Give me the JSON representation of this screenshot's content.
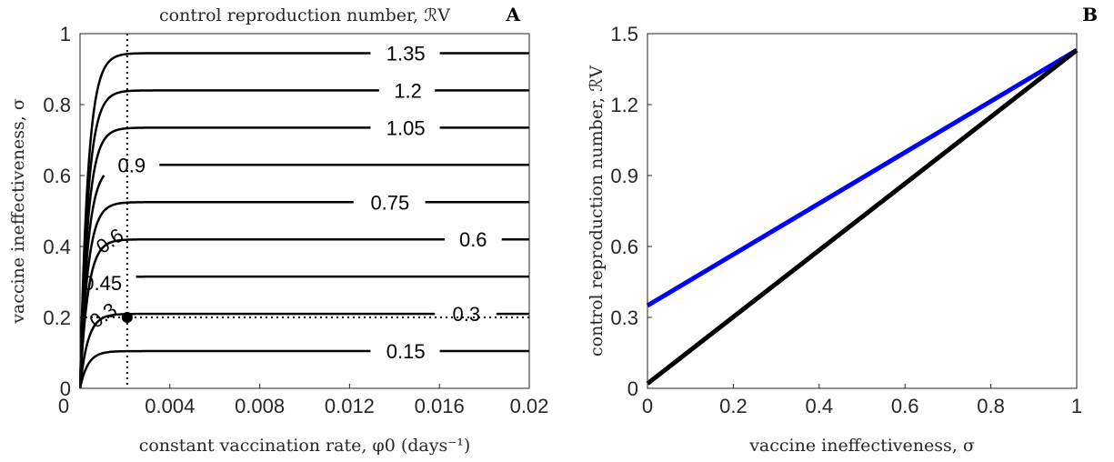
{
  "chart_data": [
    {
      "panel": "A",
      "type": "contour",
      "title": "control reproduction number, ℛV",
      "xlabel": "constant vaccination rate, φ0 (days⁻¹)",
      "ylabel": "vaccine ineffectiveness, σ",
      "xlim": [
        0,
        0.02
      ],
      "ylim": [
        0,
        1
      ],
      "xticks": [
        0,
        0.004,
        0.008,
        0.012,
        0.016,
        0.02
      ],
      "xtick_labels": [
        "0",
        "0.004",
        "0.008",
        "0.012",
        "0.016",
        "0.02"
      ],
      "yticks": [
        0,
        0.2,
        0.4,
        0.6,
        0.8,
        1
      ],
      "ytick_labels": [
        "0",
        "0.2",
        "0.4",
        "0.6",
        "0.8",
        "1"
      ],
      "contours": [
        {
          "level": 0.15,
          "label": "0.15",
          "asymptote_sigma": 0.105,
          "label_x": 0.0145
        },
        {
          "level": 0.3,
          "label": "0.3",
          "asymptote_sigma": 0.21,
          "label_x": 0.0172
        },
        {
          "level": 0.45,
          "label": "0.45",
          "asymptote_sigma": 0.315,
          "label_x": 0.001
        },
        {
          "level": 0.6,
          "label": "0.6",
          "asymptote_sigma": 0.42,
          "label_x": 0.0175
        },
        {
          "level": 0.75,
          "label": "0.75",
          "asymptote_sigma": 0.525,
          "label_x": 0.0138
        },
        {
          "level": 0.9,
          "label": "0.9",
          "asymptote_sigma": 0.63,
          "label_x": 0.0023
        },
        {
          "level": 1.05,
          "label": "1.05",
          "asymptote_sigma": 0.735,
          "label_x": 0.0145
        },
        {
          "level": 1.2,
          "label": "1.2",
          "asymptote_sigma": 0.84,
          "label_x": 0.0146
        },
        {
          "level": 1.35,
          "label": "1.35",
          "asymptote_sigma": 0.945,
          "label_x": 0.0145
        }
      ],
      "extra_labels": [
        {
          "text": "0.6",
          "phi": 0.0015,
          "sigma": 0.4
        },
        {
          "text": "0.3",
          "phi": 0.0012,
          "sigma": 0.19
        }
      ],
      "reference_lines": {
        "phi0": 0.0021,
        "sigma": 0.2
      },
      "marked_point": {
        "phi0": 0.0021,
        "sigma": 0.2
      },
      "panel_label": "A"
    },
    {
      "panel": "B",
      "type": "line",
      "xlabel": "vaccine ineffectiveness, σ",
      "ylabel": "control reproduction number, ℛV",
      "xlim": [
        0,
        1
      ],
      "ylim": [
        0,
        1.5
      ],
      "xticks": [
        0,
        0.2,
        0.4,
        0.6,
        0.8,
        1
      ],
      "xtick_labels": [
        "0",
        "0.2",
        "0.4",
        "0.6",
        "0.8",
        "1"
      ],
      "yticks": [
        0,
        0.3,
        0.6,
        0.9,
        1.2,
        1.5
      ],
      "ytick_labels": [
        "0",
        "0.3",
        "0.6",
        "0.9",
        "1.2",
        "1.5"
      ],
      "series": [
        {
          "color": "#0000ff",
          "x": [
            0,
            1
          ],
          "y": [
            0.35,
            1.43
          ]
        },
        {
          "color": "#000000",
          "x": [
            0,
            1
          ],
          "y": [
            0.02,
            1.43
          ]
        }
      ],
      "panel_label": "B"
    }
  ]
}
